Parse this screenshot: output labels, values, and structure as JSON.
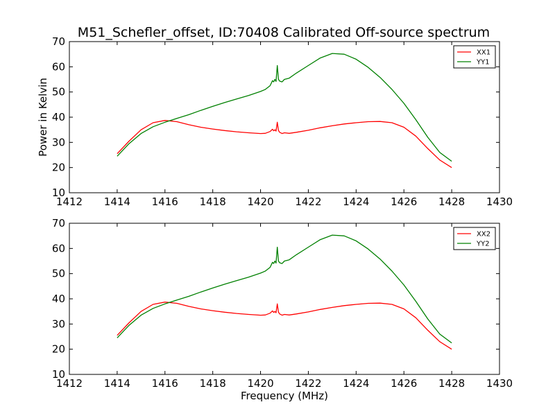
{
  "title": "M51_Schefler_offset, ID:70408 Calibrated Off-source spectrum",
  "chart_data": [
    {
      "type": "line",
      "xlabel": "",
      "ylabel": "Power in Kelvin",
      "xlim": [
        1412,
        1430
      ],
      "ylim": [
        10,
        70
      ],
      "xticks": [
        "1412",
        "1414",
        "1416",
        "1418",
        "1420",
        "1422",
        "1424",
        "1426",
        "1428",
        "1430"
      ],
      "yticks": [
        "10",
        "20",
        "30",
        "40",
        "50",
        "60",
        "70"
      ],
      "legend": "top-right",
      "grid": false,
      "series": [
        {
          "name": "XX1",
          "color": "#ff0000",
          "x": [
            1414.0,
            1414.5,
            1415.0,
            1415.5,
            1416.0,
            1416.5,
            1417.0,
            1417.5,
            1418.0,
            1418.5,
            1419.0,
            1419.5,
            1420.0,
            1420.2,
            1420.4,
            1420.5,
            1420.55,
            1420.6,
            1420.65,
            1420.7,
            1420.75,
            1420.8,
            1420.9,
            1421.0,
            1421.2,
            1421.5,
            1422.0,
            1422.5,
            1423.0,
            1423.5,
            1424.0,
            1424.5,
            1425.0,
            1425.5,
            1426.0,
            1426.5,
            1427.0,
            1427.5,
            1428.0
          ],
          "y": [
            25.5,
            30.5,
            35.0,
            37.8,
            38.7,
            38.2,
            37.0,
            36.0,
            35.3,
            34.7,
            34.2,
            33.8,
            33.5,
            33.6,
            34.3,
            35.2,
            34.6,
            35.0,
            34.5,
            38.0,
            34.7,
            34.0,
            33.5,
            33.8,
            33.6,
            34.0,
            34.8,
            35.8,
            36.6,
            37.3,
            37.8,
            38.2,
            38.3,
            37.8,
            36.0,
            32.5,
            27.5,
            23.0,
            20.0
          ]
        },
        {
          "name": "YY1",
          "color": "#008000",
          "x": [
            1414.0,
            1414.5,
            1415.0,
            1415.5,
            1416.0,
            1416.5,
            1417.0,
            1417.5,
            1418.0,
            1418.5,
            1419.0,
            1419.5,
            1420.0,
            1420.2,
            1420.4,
            1420.5,
            1420.55,
            1420.6,
            1420.65,
            1420.7,
            1420.75,
            1420.8,
            1420.9,
            1421.0,
            1421.2,
            1421.5,
            1422.0,
            1422.5,
            1423.0,
            1423.5,
            1424.0,
            1424.5,
            1425.0,
            1425.5,
            1426.0,
            1426.5,
            1427.0,
            1427.5,
            1428.0
          ],
          "y": [
            24.5,
            29.5,
            33.5,
            36.2,
            38.0,
            39.5,
            41.0,
            42.7,
            44.3,
            45.8,
            47.2,
            48.6,
            50.2,
            51.0,
            52.5,
            54.5,
            54.0,
            55.0,
            54.2,
            60.5,
            55.0,
            54.3,
            54.0,
            55.0,
            55.5,
            57.5,
            60.5,
            63.5,
            65.3,
            65.0,
            63.0,
            59.8,
            55.8,
            51.0,
            45.5,
            39.0,
            32.0,
            26.0,
            22.5
          ]
        }
      ]
    },
    {
      "type": "line",
      "xlabel": "Frequency (MHz)",
      "ylabel": "",
      "xlim": [
        1412,
        1430
      ],
      "ylim": [
        10,
        70
      ],
      "xticks": [
        "1412",
        "1414",
        "1416",
        "1418",
        "1420",
        "1422",
        "1424",
        "1426",
        "1428",
        "1430"
      ],
      "yticks": [
        "10",
        "20",
        "30",
        "40",
        "50",
        "60",
        "70"
      ],
      "legend": "top-right",
      "grid": false,
      "series": [
        {
          "name": "XX2",
          "color": "#ff0000",
          "x": [
            1414.0,
            1414.5,
            1415.0,
            1415.5,
            1416.0,
            1416.5,
            1417.0,
            1417.5,
            1418.0,
            1418.5,
            1419.0,
            1419.5,
            1420.0,
            1420.2,
            1420.4,
            1420.5,
            1420.55,
            1420.6,
            1420.65,
            1420.7,
            1420.75,
            1420.8,
            1420.9,
            1421.0,
            1421.2,
            1421.5,
            1422.0,
            1422.5,
            1423.0,
            1423.5,
            1424.0,
            1424.5,
            1425.0,
            1425.5,
            1426.0,
            1426.5,
            1427.0,
            1427.5,
            1428.0
          ],
          "y": [
            25.5,
            30.5,
            35.0,
            37.8,
            38.7,
            38.2,
            37.0,
            36.0,
            35.3,
            34.7,
            34.2,
            33.8,
            33.5,
            33.6,
            34.3,
            35.2,
            34.6,
            35.0,
            34.5,
            38.0,
            34.7,
            34.0,
            33.5,
            33.8,
            33.6,
            34.0,
            34.8,
            35.8,
            36.6,
            37.3,
            37.8,
            38.2,
            38.3,
            37.8,
            36.0,
            32.5,
            27.5,
            23.0,
            20.0
          ]
        },
        {
          "name": "YY2",
          "color": "#008000",
          "x": [
            1414.0,
            1414.5,
            1415.0,
            1415.5,
            1416.0,
            1416.5,
            1417.0,
            1417.5,
            1418.0,
            1418.5,
            1419.0,
            1419.5,
            1420.0,
            1420.2,
            1420.4,
            1420.5,
            1420.55,
            1420.6,
            1420.65,
            1420.7,
            1420.75,
            1420.8,
            1420.9,
            1421.0,
            1421.2,
            1421.5,
            1422.0,
            1422.5,
            1423.0,
            1423.5,
            1424.0,
            1424.5,
            1425.0,
            1425.5,
            1426.0,
            1426.5,
            1427.0,
            1427.5,
            1428.0
          ],
          "y": [
            24.5,
            29.5,
            33.5,
            36.2,
            38.0,
            39.5,
            41.0,
            42.7,
            44.3,
            45.8,
            47.2,
            48.6,
            50.2,
            51.0,
            52.5,
            54.5,
            54.0,
            55.0,
            54.2,
            60.5,
            55.0,
            54.3,
            54.0,
            55.0,
            55.5,
            57.5,
            60.5,
            63.5,
            65.3,
            65.0,
            63.0,
            59.8,
            55.8,
            51.0,
            45.5,
            39.0,
            32.0,
            26.0,
            22.5
          ]
        }
      ]
    }
  ]
}
